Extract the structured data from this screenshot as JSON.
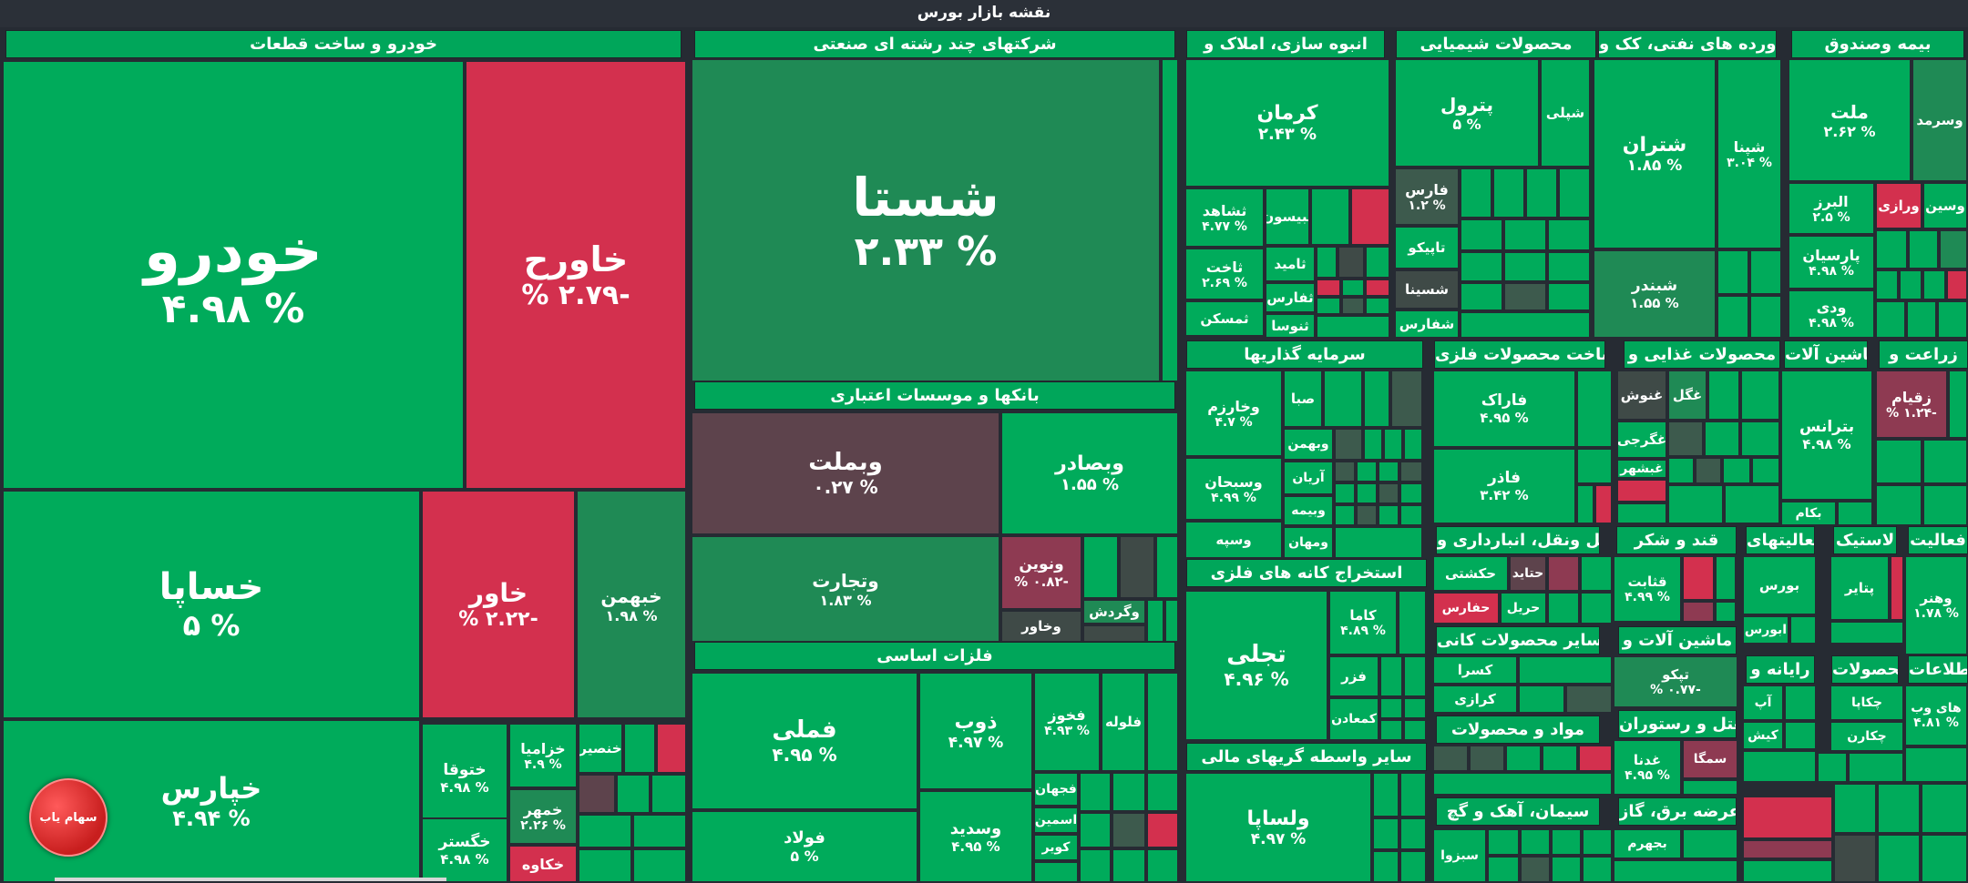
{
  "page": {
    "title": "نقشه بازار بورس"
  },
  "sections": {
    "auto": "خودرو و ساخت قطعات",
    "multi": "شرکتهای چند رشته ای صنعتی",
    "realestate": "انبوه سازی، املاک و",
    "chem": "محصولات شیمیایی",
    "oil": "فراورده های نفتی، کک و",
    "insurance": "بیمه وصندوق",
    "banks": "بانکها و موسسات اعتباری",
    "invest": "سرمایه گذاریها",
    "metalproducts": "ساخت محصولات فلزی",
    "food": "محصولات غذایی و",
    "machinery": "ماشین آلات",
    "agri": "زراعت و",
    "basicmetals": "فلزات اساسی",
    "mining_metal": "استخراج کانه های فلزی",
    "transport": "حمل ونقل، انبارداری و",
    "sugar": "قند و شکر",
    "activities": "فعالیتهای",
    "rubber": "لاستیک",
    "activities2": "فعالیت",
    "other_mining": "سایر محصولات کانی",
    "machinery2": "ماشین آلات و",
    "computer": "رایانه و",
    "products": "محصولات",
    "info": "اطلاعات",
    "materials": "مواد و محصولات",
    "hotel": "هتل و رستوران",
    "finance_mid": "سایر واسطه گریهای مالی",
    "cement": "سیمان، آهک و گچ",
    "power": "عرضه برق، گاز،"
  },
  "tiles": {
    "khodro": {
      "name": "خودرو",
      "pct": "% ۴.۹۸"
    },
    "khavarah": {
      "name": "خاورح",
      "pct": "-۲.۷۹ %"
    },
    "khsapa": {
      "name": "خساپا",
      "pct": "% ۵"
    },
    "khavar": {
      "name": "خاور",
      "pct": "-۲.۲۲ %"
    },
    "khbahman": {
      "name": "خبهمن",
      "pct": "% ۱.۹۸"
    },
    "khpars": {
      "name": "خپارس",
      "pct": "% ۴.۹۴"
    },
    "khtoga": {
      "name": "ختوقا",
      "pct": "% ۴.۹۸"
    },
    "khzamia": {
      "name": "خزامیا",
      "pct": "% ۴.۹"
    },
    "khnasir": {
      "name": "خنصیر",
      "pct": ""
    },
    "khmehr": {
      "name": "خمهر",
      "pct": "% ۲.۲۶"
    },
    "khgostar": {
      "name": "خگستر",
      "pct": "% ۴.۹۸"
    },
    "khkavah": {
      "name": "خکاوه",
      "pct": ""
    },
    "shasta": {
      "name": "شستا",
      "pct": "% ۲.۳۳"
    },
    "vbmellat": {
      "name": "وبملت",
      "pct": "% ۰.۲۷"
    },
    "vbsader": {
      "name": "وبصادر",
      "pct": "% ۱.۵۵"
    },
    "vtejarat": {
      "name": "وتجارت",
      "pct": "% ۱.۸۳"
    },
    "vnovin": {
      "name": "ونوین",
      "pct": "-۰.۸۲ %"
    },
    "vgardesh": {
      "name": "وگردش",
      "pct": ""
    },
    "vkhavar": {
      "name": "وخاور",
      "pct": ""
    },
    "fameli": {
      "name": "فملی",
      "pct": "% ۴.۹۵"
    },
    "zob": {
      "name": "ذوب",
      "pct": "% ۴.۹۷"
    },
    "fkhoz": {
      "name": "فخوز",
      "pct": "% ۴.۹۳"
    },
    "folah": {
      "name": "فلوله",
      "pct": ""
    },
    "foolad": {
      "name": "فولاد",
      "pct": "% ۵"
    },
    "vsadid": {
      "name": "وسدید",
      "pct": "% ۴.۹۵"
    },
    "fjahan": {
      "name": "فجهان",
      "pct": ""
    },
    "fasmin": {
      "name": "اسمین",
      "pct": ""
    },
    "kavir": {
      "name": "کویر",
      "pct": ""
    },
    "kerman": {
      "name": "کرمان",
      "pct": "% ۲.۴۳"
    },
    "sshahed": {
      "name": "ثشاهد",
      "pct": "% ۴.۷۷"
    },
    "saakht": {
      "name": "ثاخت",
      "pct": "% ۲.۶۹"
    },
    "smaskan": {
      "name": "ثمسکن",
      "pct": ""
    },
    "bisoon": {
      "name": "ثبیسون",
      "pct": ""
    },
    "samid": {
      "name": "ثامید",
      "pct": ""
    },
    "sfars": {
      "name": "ثفارس",
      "pct": ""
    },
    "snosa": {
      "name": "ثنوسا",
      "pct": ""
    },
    "petrol": {
      "name": "پترول",
      "pct": "% ۵"
    },
    "shpli": {
      "name": "شپلی",
      "pct": ""
    },
    "fars": {
      "name": "فارس",
      "pct": "% ۱.۲"
    },
    "tapiko": {
      "name": "تاپیکو",
      "pct": ""
    },
    "shsina": {
      "name": "شسینا",
      "pct": ""
    },
    "shfaras": {
      "name": "شفارس",
      "pct": ""
    },
    "shtran": {
      "name": "شتران",
      "pct": "% ۱.۸۵"
    },
    "shpna": {
      "name": "شپنا",
      "pct": "% ۳.۰۴"
    },
    "shbandar": {
      "name": "شبندر",
      "pct": "% ۱.۵۵"
    },
    "mellat": {
      "name": "ملت",
      "pct": "% ۲.۶۲"
    },
    "vsamard": {
      "name": "وسرمد",
      "pct": ""
    },
    "alborz": {
      "name": "البرز",
      "pct": "% ۲.۵"
    },
    "varazi": {
      "name": "ورازی",
      "pct": ""
    },
    "vsin": {
      "name": "وسین",
      "pct": ""
    },
    "parsian": {
      "name": "پارسیان",
      "pct": "% ۴.۹۸"
    },
    "vdey": {
      "name": "ودی",
      "pct": "% ۴.۹۸"
    },
    "vkharazm": {
      "name": "وخارزم",
      "pct": "% ۴.۷"
    },
    "saba": {
      "name": "صبا",
      "pct": ""
    },
    "vbahman": {
      "name": "وبهمن",
      "pct": ""
    },
    "arian": {
      "name": "آریان",
      "pct": ""
    },
    "vsobhan": {
      "name": "وسبحان",
      "pct": "% ۴.۹۹"
    },
    "vbimeh": {
      "name": "وبیمه",
      "pct": ""
    },
    "vmehan": {
      "name": "ومهان",
      "pct": ""
    },
    "vsepah": {
      "name": "وسپه",
      "pct": ""
    },
    "farak": {
      "name": "فاراک",
      "pct": "% ۴.۹۵"
    },
    "fazar": {
      "name": "فاذر",
      "pct": "% ۳.۴۲"
    },
    "ghnoosh": {
      "name": "غنوش",
      "pct": ""
    },
    "ghgol": {
      "name": "غگل",
      "pct": ""
    },
    "ghgorji": {
      "name": "غگرجی",
      "pct": ""
    },
    "ghshahr": {
      "name": "غبشهر",
      "pct": ""
    },
    "btranas": {
      "name": "بترانس",
      "pct": "% ۴.۹۸"
    },
    "bkam": {
      "name": "بکام",
      "pct": ""
    },
    "zaghiam": {
      "name": "زقیام",
      "pct": "-۱.۲۴ %"
    },
    "tajali": {
      "name": "تجلی",
      "pct": "% ۴.۹۶"
    },
    "kama": {
      "name": "کاما",
      "pct": "% ۴.۸۹"
    },
    "fazar2": {
      "name": "فزر",
      "pct": ""
    },
    "kmaadan": {
      "name": "کمعادن",
      "pct": ""
    },
    "hkashti": {
      "name": "حکشتی",
      "pct": ""
    },
    "hatid": {
      "name": "حتاید",
      "pct": ""
    },
    "hfars": {
      "name": "حفارس",
      "pct": ""
    },
    "hril": {
      "name": "حریل",
      "pct": ""
    },
    "ghotbat": {
      "name": "قثابت",
      "pct": "% ۴.۹۹"
    },
    "borse": {
      "name": "بورس",
      "pct": ""
    },
    "aburse": {
      "name": "ابورس",
      "pct": ""
    },
    "ptayer": {
      "name": "پتایر",
      "pct": ""
    },
    "vahnar": {
      "name": "وهنر",
      "pct": "% ۱.۷۸"
    },
    "kesra": {
      "name": "کسرا",
      "pct": ""
    },
    "kerazi": {
      "name": "کرازی",
      "pct": ""
    },
    "tapiko2": {
      "name": "تپکو",
      "pct": "-۰.۷۷ %"
    },
    "ap": {
      "name": "آپ",
      "pct": ""
    },
    "chkapa": {
      "name": "چکاپا",
      "pct": ""
    },
    "kish": {
      "name": "کیش",
      "pct": ""
    },
    "chkaran": {
      "name": "چکارن",
      "pct": ""
    },
    "hiweb": {
      "name": "های وب",
      "pct": "% ۴.۸۱"
    },
    "ghadar": {
      "name": "غدنا",
      "pct": "% ۴.۹۵"
    },
    "sama": {
      "name": "سمگا",
      "pct": ""
    },
    "vlsapa": {
      "name": "ولساپا",
      "pct": "% ۴.۹۷"
    },
    "sbezva": {
      "name": "سبزوا",
      "pct": ""
    },
    "bjahrom": {
      "name": "بجهرم",
      "pct": ""
    }
  },
  "logo": {
    "text": "سهام یاب"
  }
}
